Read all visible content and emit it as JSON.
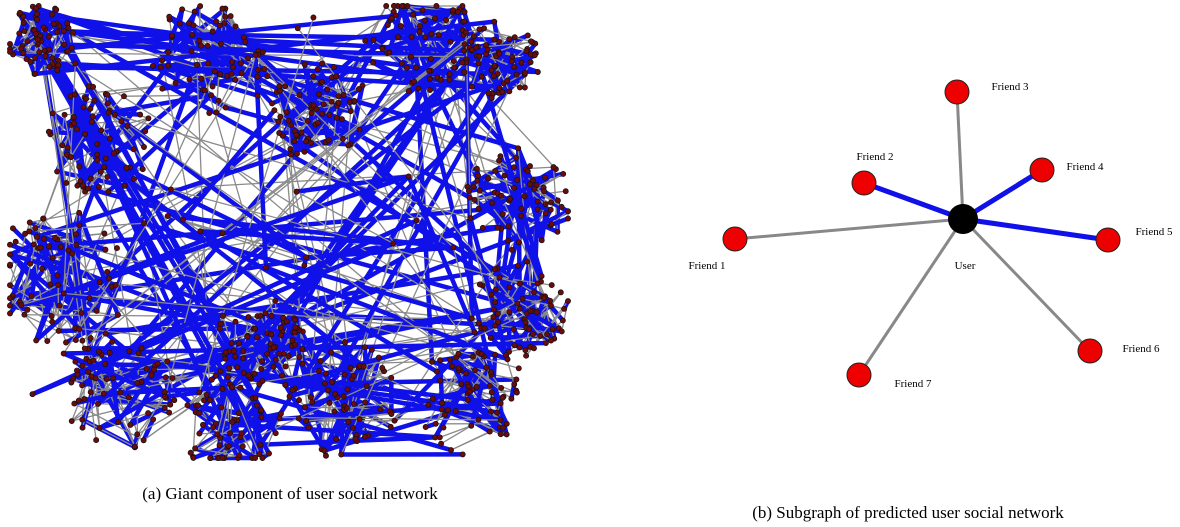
{
  "panel_a": {
    "caption": "(a) Giant component of user social network"
  },
  "panel_b": {
    "caption": "(b) Subgraph of predicted user social network",
    "center": {
      "label": "User"
    },
    "nodes": [
      {
        "label": "Friend 1"
      },
      {
        "label": "Friend 2"
      },
      {
        "label": "Friend 3"
      },
      {
        "label": "Friend 4"
      },
      {
        "label": "Friend 5"
      },
      {
        "label": "Friend 6"
      },
      {
        "label": "Friend 7"
      }
    ]
  }
}
